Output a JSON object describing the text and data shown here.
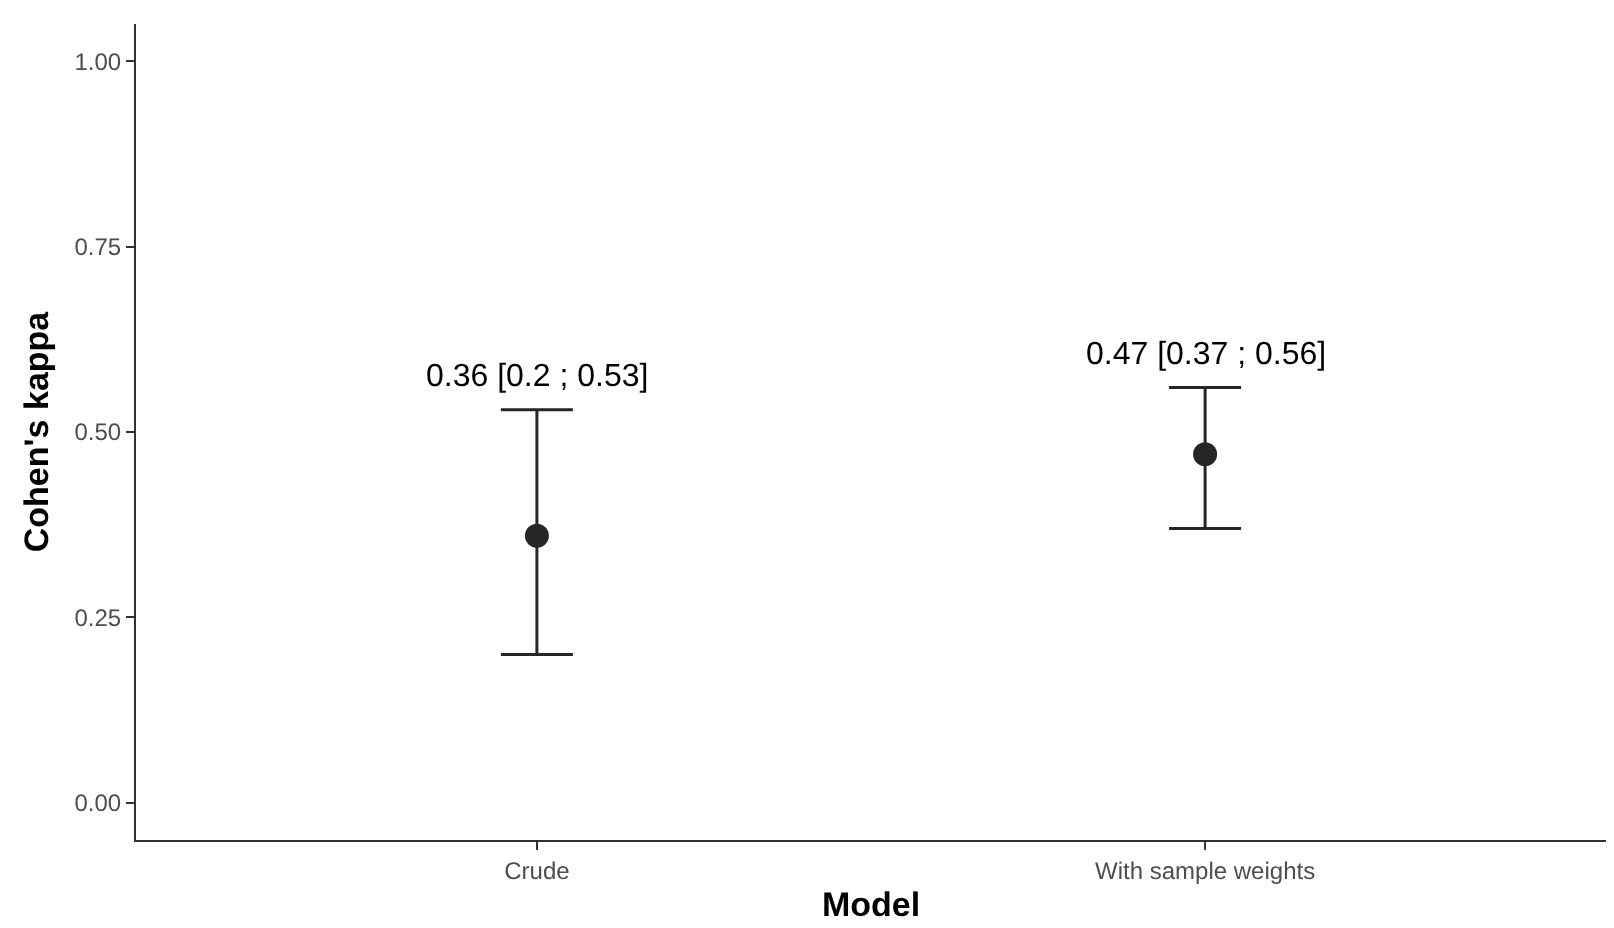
{
  "chart_data": {
    "type": "scatter",
    "xlabel": "Model",
    "ylabel": "Cohen's kappa",
    "categories": [
      "Crude",
      "With sample weights"
    ],
    "series": [
      {
        "color": "#262626",
        "values": [
          0.36,
          0.47
        ],
        "errors": [
          [
            0.2,
            0.53
          ],
          [
            0.37,
            0.56
          ]
        ]
      }
    ],
    "annotations": [
      {
        "text": "0.36 [0.2 ; 0.53]",
        "x": "Crude",
        "y": 0.53
      },
      {
        "text": "0.47 [0.37 ; 0.56]",
        "x": "With sample weights",
        "y": 0.56
      }
    ],
    "ylim": [
      -0.05,
      1.05
    ],
    "yticks": [
      {
        "value": 0,
        "label": "0.00"
      },
      {
        "value": 0.25,
        "label": "0.25"
      },
      {
        "value": 0.5,
        "label": "0.50"
      },
      {
        "value": 0.75,
        "label": "0.75"
      },
      {
        "value": 1,
        "label": "1.00"
      }
    ],
    "marker": "circle"
  }
}
